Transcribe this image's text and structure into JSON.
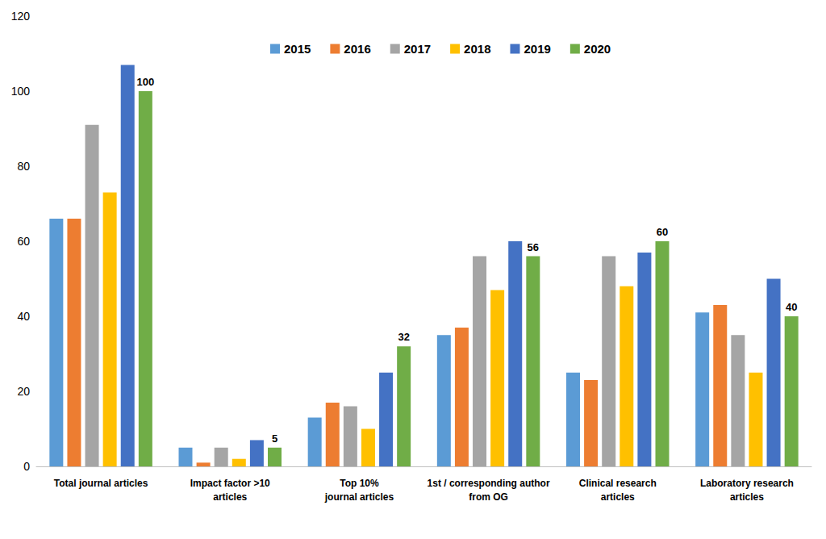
{
  "chart_data": {
    "type": "bar",
    "categories": [
      "Total journal articles",
      "Impact factor >10\narticles",
      "Top 10%\njournal articles",
      "1st / corresponding author\nfrom OG",
      "Clinical research\narticles",
      "Laboratory research\narticles"
    ],
    "series": [
      {
        "name": "2015",
        "color": "#5B9BD5",
        "values": [
          66,
          5,
          13,
          35,
          25,
          41
        ]
      },
      {
        "name": "2016",
        "color": "#ED7D31",
        "values": [
          66,
          1,
          17,
          37,
          23,
          43
        ]
      },
      {
        "name": "2017",
        "color": "#A5A5A5",
        "values": [
          91,
          5,
          16,
          56,
          56,
          35
        ]
      },
      {
        "name": "2018",
        "color": "#FFC000",
        "values": [
          73,
          2,
          10,
          47,
          48,
          25
        ]
      },
      {
        "name": "2019",
        "color": "#4472C4",
        "values": [
          107,
          7,
          25,
          60,
          57,
          50
        ]
      },
      {
        "name": "2020",
        "color": "#70AD47",
        "values": [
          100,
          5,
          32,
          56,
          60,
          40
        ],
        "data_labels": true
      }
    ],
    "ylim": [
      0,
      120
    ],
    "yticks": [
      0,
      20,
      40,
      60,
      80,
      100,
      120
    ],
    "grid": false,
    "legend": "top"
  }
}
